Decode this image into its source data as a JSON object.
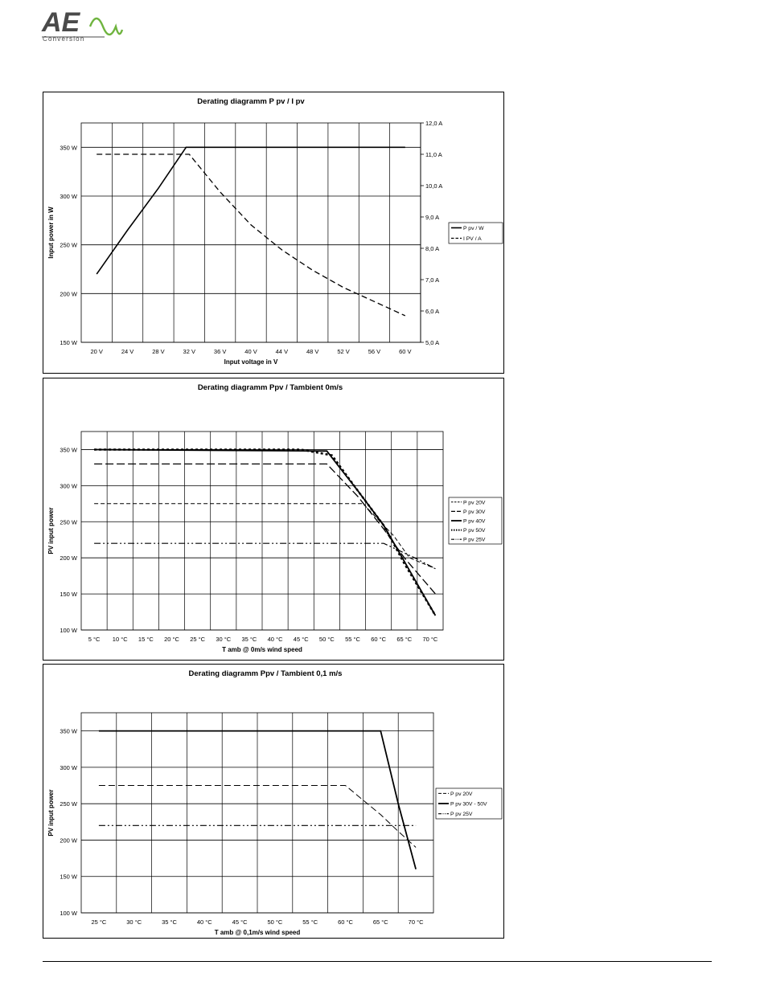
{
  "logo": {
    "big": "AE",
    "small": "Conversion",
    "accent": "#6fb43f"
  },
  "chart_data": [
    {
      "type": "line",
      "title": "Derating diagramm P pv / I pv",
      "xlabel": "Input voltage in V",
      "ylabel": "Input power in W",
      "categories": [
        "20 V",
        "24 V",
        "28 V",
        "32 V",
        "36 V",
        "40 V",
        "44 V",
        "48 V",
        "52 V",
        "56 V",
        "60 V"
      ],
      "ylim": [
        150,
        375
      ],
      "yticks": [
        "150 W",
        "200 W",
        "250 W",
        "300 W",
        "350 W"
      ],
      "y2lim": [
        5.0,
        12.0
      ],
      "y2ticks": [
        "5,0 A",
        "6,0 A",
        "7,0 A",
        "8,0 A",
        "9,0 A",
        "10,0 A",
        "11,0 A",
        "12,0 A"
      ],
      "legend_position": "right",
      "series": [
        {
          "name": "P pv / W",
          "axis": "left",
          "dash": "",
          "width": 1.6,
          "x": [
            20,
            24,
            28,
            31.6,
            36,
            40,
            44,
            48,
            52,
            56,
            60
          ],
          "y": [
            220,
            265,
            308,
            350,
            350,
            350,
            350,
            350,
            350,
            350,
            350
          ]
        },
        {
          "name": "I PV / A",
          "axis": "right",
          "dash": "7,4",
          "width": 1.3,
          "x": [
            20,
            24,
            28,
            32,
            36,
            40,
            44,
            48,
            52,
            56,
            60
          ],
          "y": [
            11.0,
            11.0,
            11.0,
            11.0,
            9.8,
            8.75,
            7.95,
            7.3,
            6.75,
            6.3,
            5.85
          ]
        }
      ]
    },
    {
      "type": "line",
      "title": "Derating diagramm Ppv / Tambient 0m/s",
      "xlabel": "T amb  @ 0m/s wind speed",
      "ylabel": "PV input power",
      "categories": [
        "5 °C",
        "10 °C",
        "15 °C",
        "20 °C",
        "25 °C",
        "30 °C",
        "35 °C",
        "40 °C",
        "45 °C",
        "50 °C",
        "55 °C",
        "60 °C",
        "65 °C",
        "70 °C"
      ],
      "ylim": [
        100,
        375
      ],
      "yticks": [
        "100 W",
        "150 W",
        "200 W",
        "250 W",
        "300 W",
        "350 W"
      ],
      "legend_position": "right",
      "series": [
        {
          "name": "P pv 20V",
          "dash": "5,3",
          "width": 1,
          "x": [
            5,
            57,
            63,
            66,
            71
          ],
          "y": [
            275,
            275,
            230,
            200,
            185
          ]
        },
        {
          "name": "P pv 30V",
          "dash": "10,4",
          "width": 1.3,
          "x": [
            5,
            50,
            56,
            61,
            65,
            71
          ],
          "y": [
            330,
            330,
            285,
            240,
            200,
            150
          ]
        },
        {
          "name": "P pv 40V",
          "dash": "",
          "width": 1.8,
          "x": [
            5,
            50,
            56,
            61,
            65,
            71
          ],
          "y": [
            350,
            348,
            293,
            245,
            195,
            120
          ]
        },
        {
          "name": "P pv 50V",
          "dash": "3,3",
          "width": 2.5,
          "x": [
            5,
            45,
            51,
            56,
            61,
            65,
            71
          ],
          "y": [
            350,
            350,
            342,
            293,
            245,
            192,
            120
          ]
        },
        {
          "name": "P pv 25V",
          "dash": "8,3,2,3,2,3",
          "width": 1.2,
          "x": [
            5,
            61,
            64,
            67,
            71
          ],
          "y": [
            220,
            220,
            210,
            200,
            185
          ]
        }
      ]
    },
    {
      "type": "line",
      "title": "Derating diagramm Ppv / Tambient 0,1 m/s",
      "xlabel": "T amb  @ 0,1m/s wind speed",
      "ylabel": "PV input power",
      "categories": [
        "25 °C",
        "30 °C",
        "35 °C",
        "40 °C",
        "45 °C",
        "50 °C",
        "55 °C",
        "60 °C",
        "65 °C",
        "70 °C"
      ],
      "ylim": [
        100,
        375
      ],
      "yticks": [
        "100 W",
        "150 W",
        "200 W",
        "250 W",
        "300 W",
        "350 W"
      ],
      "legend_position": "right",
      "series": [
        {
          "name": "P pv 20V",
          "dash": "8,4",
          "width": 1,
          "x": [
            25,
            60,
            65,
            67.5,
            70
          ],
          "y": [
            275,
            275,
            235,
            212,
            190
          ]
        },
        {
          "name": "P pv 30V - 50V",
          "dash": "",
          "width": 1.8,
          "x": [
            25,
            65,
            67.5,
            70
          ],
          "y": [
            350,
            350,
            250,
            160
          ]
        },
        {
          "name": "P pv 25V",
          "dash": "8,3,2,3,2,3",
          "width": 1.1,
          "x": [
            25,
            68,
            70
          ],
          "y": [
            220,
            220,
            220
          ]
        }
      ]
    }
  ]
}
